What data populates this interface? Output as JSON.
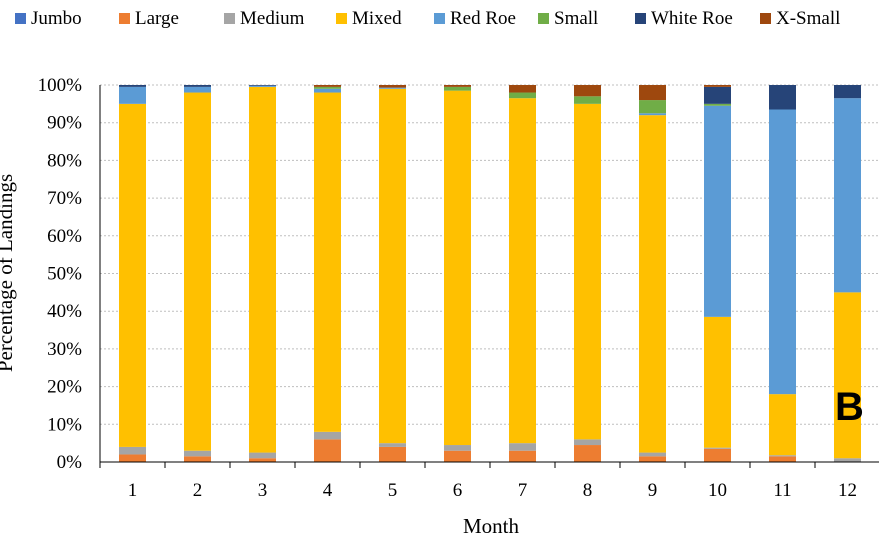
{
  "chart_data": {
    "type": "bar",
    "stacked": true,
    "normalized_percent": true,
    "panel_label": "B",
    "xlabel": "Month",
    "ylabel": "Percentage of Landings",
    "ylim": [
      0,
      100
    ],
    "y_ticks": [
      "0%",
      "10%",
      "20%",
      "30%",
      "40%",
      "50%",
      "60%",
      "70%",
      "80%",
      "90%",
      "100%"
    ],
    "grid": "horizontal dotted",
    "legend_position": "top",
    "categories": [
      "1",
      "2",
      "3",
      "4",
      "5",
      "6",
      "7",
      "8",
      "9",
      "10",
      "11",
      "12"
    ],
    "series": [
      {
        "name": "Jumbo",
        "color": "#4472C4",
        "values": [
          0,
          0,
          0,
          0,
          0,
          0,
          0,
          0,
          0,
          0,
          0,
          0
        ]
      },
      {
        "name": "Large",
        "color": "#ED7D31",
        "values": [
          2,
          1.5,
          1,
          6,
          4,
          3,
          3,
          4.5,
          1.5,
          3.5,
          1.5,
          0
        ]
      },
      {
        "name": "Medium",
        "color": "#A5A5A5",
        "values": [
          2,
          1.5,
          1.5,
          2,
          1,
          1.5,
          2,
          1.5,
          1,
          0.3,
          0.3,
          1
        ]
      },
      {
        "name": "Mixed",
        "color": "#FFC000",
        "values": [
          91,
          95,
          97,
          90,
          94,
          94,
          91.5,
          89,
          89.5,
          34.7,
          16.2,
          44
        ]
      },
      {
        "name": "Red Roe",
        "color": "#5B9BD5",
        "values": [
          4.5,
          1.5,
          0.3,
          1,
          0.3,
          0,
          0,
          0,
          0.5,
          56,
          75.5,
          51.5
        ]
      },
      {
        "name": "Small",
        "color": "#70AD47",
        "values": [
          0,
          0,
          0,
          0.5,
          0,
          1,
          1.5,
          2,
          3.5,
          0.5,
          0,
          0
        ]
      },
      {
        "name": "White Roe",
        "color": "#264478",
        "values": [
          0.5,
          0.5,
          0.2,
          0,
          0,
          0,
          0,
          0,
          0,
          4.5,
          6.5,
          3.5
        ]
      },
      {
        "name": "X-Small",
        "color": "#9E480E",
        "values": [
          0,
          0,
          0,
          0.5,
          0.7,
          0.5,
          2,
          3,
          4,
          0.5,
          0,
          0
        ]
      }
    ]
  }
}
